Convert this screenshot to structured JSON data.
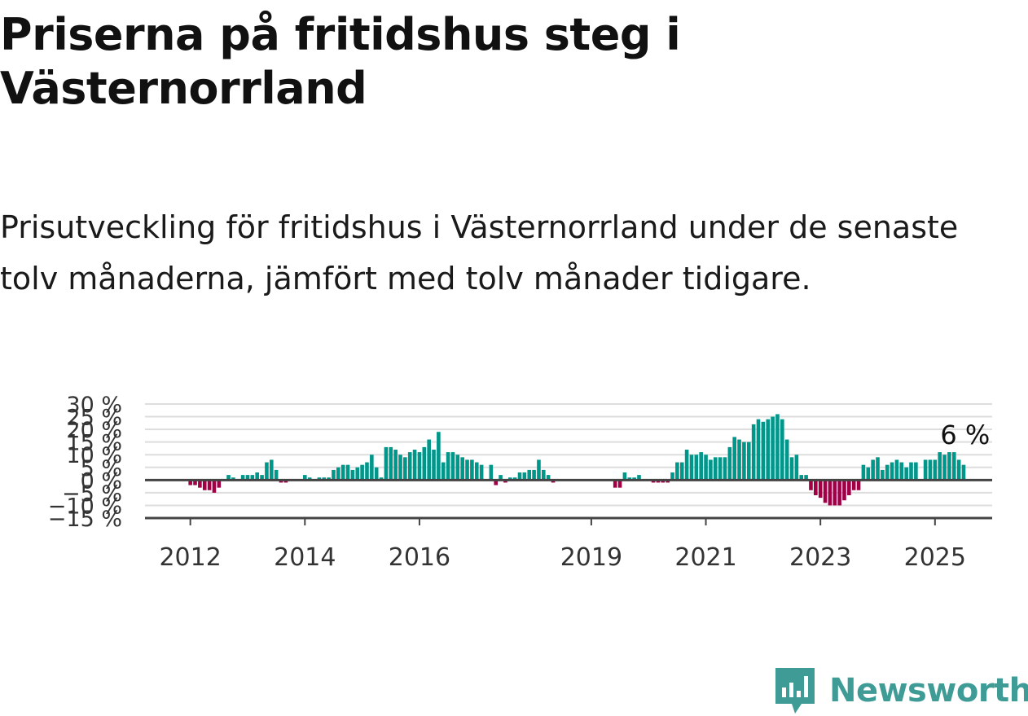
{
  "title": "Priserna på fritidshus steg i Västernorrland",
  "subtitle": "Prisutveckling för fritidshus i Västernorrland under de senaste tolv månaderna, jämfört med tolv månader tidigare.",
  "colors": {
    "positive": "#00968a",
    "negative": "#a10047",
    "grid": "#dddddd",
    "axis": "#444444",
    "brand": "#3f9b95"
  },
  "chart_data": {
    "type": "bar",
    "x_unit": "month",
    "x_start": "2011-12",
    "x_end": "2025-05",
    "y_unit": "%",
    "ylim": [
      -15,
      30
    ],
    "yticks": [
      {
        "value": 30,
        "label": "30 %"
      },
      {
        "value": 25,
        "label": "25 %"
      },
      {
        "value": 20,
        "label": "20 %"
      },
      {
        "value": 15,
        "label": "15 %"
      },
      {
        "value": 10,
        "label": "10 %"
      },
      {
        "value": 5,
        "label": "5 %"
      },
      {
        "value": 0,
        "label": "0 %"
      },
      {
        "value": -5,
        "label": "−5 %"
      },
      {
        "value": -10,
        "label": "−10 %"
      },
      {
        "value": -15,
        "label": "−15 %"
      }
    ],
    "xticks": [
      {
        "date": "2012-01",
        "label": "2012"
      },
      {
        "date": "2014-01",
        "label": "2014"
      },
      {
        "date": "2016-01",
        "label": "2016"
      },
      {
        "date": "2019-01",
        "label": "2019"
      },
      {
        "date": "2021-01",
        "label": "2021"
      },
      {
        "date": "2023-01",
        "label": "2023"
      },
      {
        "date": "2025-01",
        "label": "2025"
      }
    ],
    "values": [
      0,
      -2,
      -2,
      -3,
      -4,
      -4,
      -5,
      -3,
      0,
      2,
      1,
      0,
      2,
      2,
      2,
      3,
      2,
      7,
      8,
      4,
      -1,
      -1,
      0,
      0,
      0,
      2,
      1,
      0,
      1,
      1,
      1,
      4,
      5,
      6,
      6,
      4,
      5,
      6,
      7,
      10,
      5,
      1,
      13,
      13,
      12,
      10,
      9,
      11,
      12,
      11,
      13,
      16,
      12,
      19,
      7,
      11,
      11,
      10,
      9,
      8,
      8,
      7,
      6,
      0,
      6,
      -2,
      2,
      -1,
      1,
      1,
      3,
      3,
      4,
      4,
      8,
      4,
      2,
      -1,
      0,
      0,
      0,
      0,
      0,
      0,
      0,
      0,
      0,
      0,
      0,
      0,
      -3,
      -3,
      3,
      1,
      1,
      2,
      0,
      0,
      -1,
      -1,
      -1,
      -1,
      3,
      7,
      7,
      12,
      10,
      10,
      11,
      10,
      8,
      9,
      9,
      9,
      13,
      17,
      16,
      15,
      15,
      22,
      24,
      23,
      24,
      25,
      26,
      24,
      16,
      9,
      10,
      2,
      2,
      -4,
      -6,
      -7,
      -9,
      -10,
      -10,
      -10,
      -8,
      -6,
      -4,
      -4,
      6,
      5,
      8,
      9,
      4,
      6,
      7,
      8,
      7,
      5,
      7,
      7,
      0,
      8,
      8,
      8,
      11,
      10,
      11,
      11,
      8,
      6
    ],
    "annotation": {
      "label": "6 %",
      "value": 6
    }
  },
  "footer": {
    "brand": "Newsworthy",
    "logo_icon": "bar-chart-speech-bubble-icon"
  }
}
